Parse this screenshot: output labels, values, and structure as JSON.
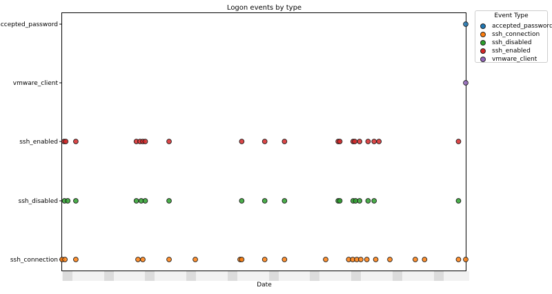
{
  "chart_data": {
    "type": "scatter",
    "title": "Logon events by type",
    "xlabel": "Date",
    "ylabel": "",
    "categories": [
      "ssh_connection",
      "ssh_disabled",
      "ssh_enabled",
      "vmware_client",
      "accepted_password"
    ],
    "x_tick_labels_obscured": true,
    "grid": false,
    "legend": {
      "title": "Event Type",
      "placement": "outside-top-right",
      "entries": [
        "accepted_password",
        "ssh_connection",
        "ssh_disabled",
        "ssh_enabled",
        "vmware_client"
      ]
    },
    "series": [
      {
        "name": "accepted_password",
        "color": "#1f77b4",
        "category": "accepted_password",
        "x": [
          100
        ]
      },
      {
        "name": "ssh_connection",
        "color": "#ff7f0e",
        "category": "ssh_connection",
        "x": [
          0,
          0.7,
          3.4,
          18.8,
          20,
          26.5,
          33,
          44.1,
          44.5,
          50.2,
          55.1,
          65.3,
          71,
          72,
          73,
          74,
          75.5,
          77.7,
          81.2,
          87.5,
          89.8,
          98.2,
          100
        ]
      },
      {
        "name": "ssh_disabled",
        "color": "#2ca02c",
        "category": "ssh_disabled",
        "x": [
          0.6,
          1.4,
          3.4,
          18.4,
          19.6,
          20.6,
          26.5,
          44.5,
          50.2,
          55.1,
          68.4,
          68.8,
          72.1,
          72.7,
          73.7,
          75.8,
          77.3,
          98.2
        ]
      },
      {
        "name": "ssh_enabled",
        "color": "#d62728",
        "category": "ssh_enabled",
        "x": [
          0.5,
          0.9,
          3.4,
          18.4,
          19.3,
          20,
          20.6,
          26.5,
          44.5,
          50.2,
          55.1,
          68.4,
          68.8,
          72.1,
          72.5,
          73.7,
          75.8,
          77.3,
          78.5,
          98.2
        ]
      },
      {
        "name": "vmware_client",
        "color": "#9467bd",
        "category": "vmware_client",
        "x": [
          100
        ]
      }
    ]
  }
}
